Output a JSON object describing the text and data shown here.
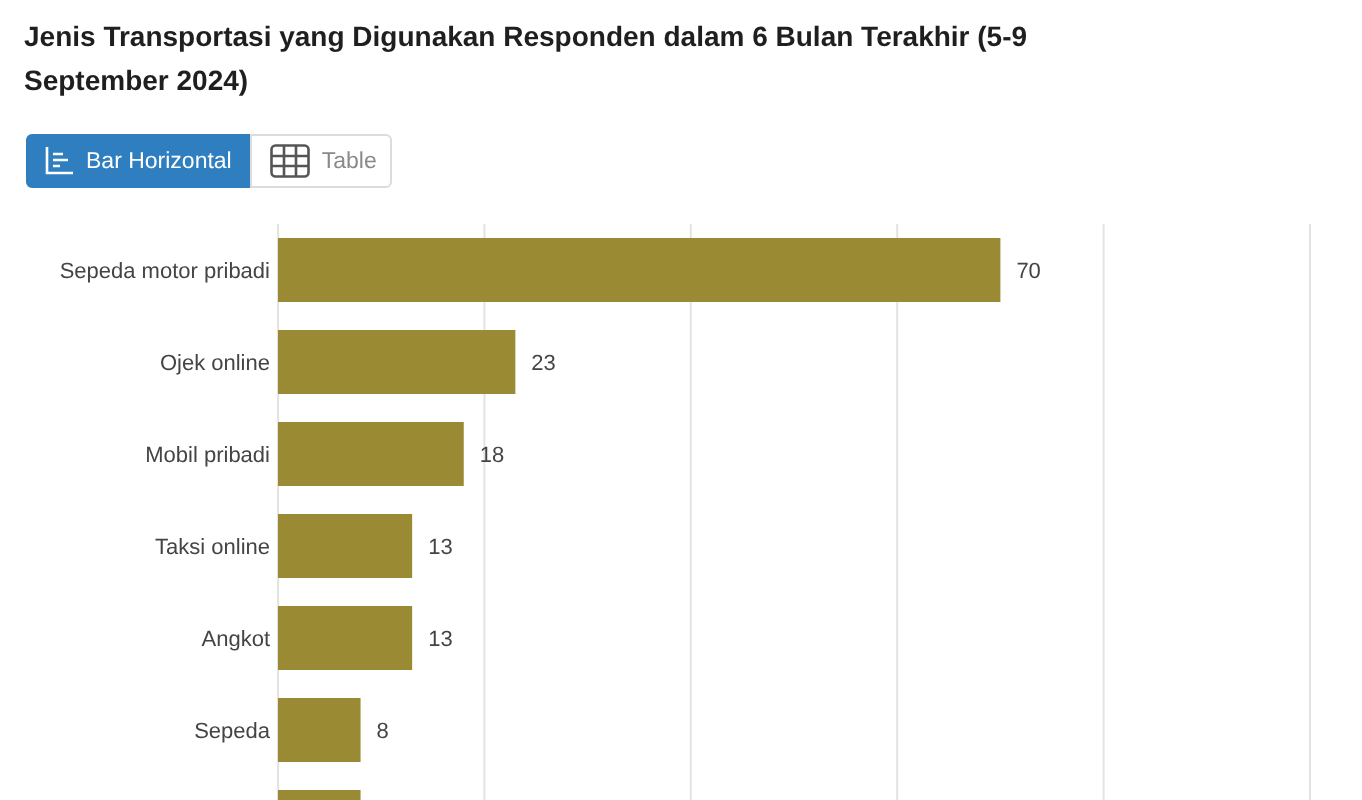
{
  "chart_data": {
    "type": "bar",
    "orientation": "horizontal",
    "title": "Jenis Transportasi yang Digunakan Responden dalam 6 Bulan Terakhir (5-9 September 2024)",
    "annotations": [
      "Bar Horizontal",
      "Table"
    ],
    "categories": [
      "Sepeda motor pribadi",
      "Ojek online",
      "Mobil pribadi",
      "Taksi online",
      "Angkot",
      "Sepeda",
      null
    ],
    "values": [
      70,
      23,
      18,
      13,
      13,
      8,
      8
    ],
    "value_labels": [
      "70",
      "23",
      "18",
      "13",
      "13",
      "8",
      null
    ],
    "color": "#9b8a34",
    "xlim": [
      0,
      100
    ],
    "grid": "x",
    "tick_labels": "y"
  }
}
